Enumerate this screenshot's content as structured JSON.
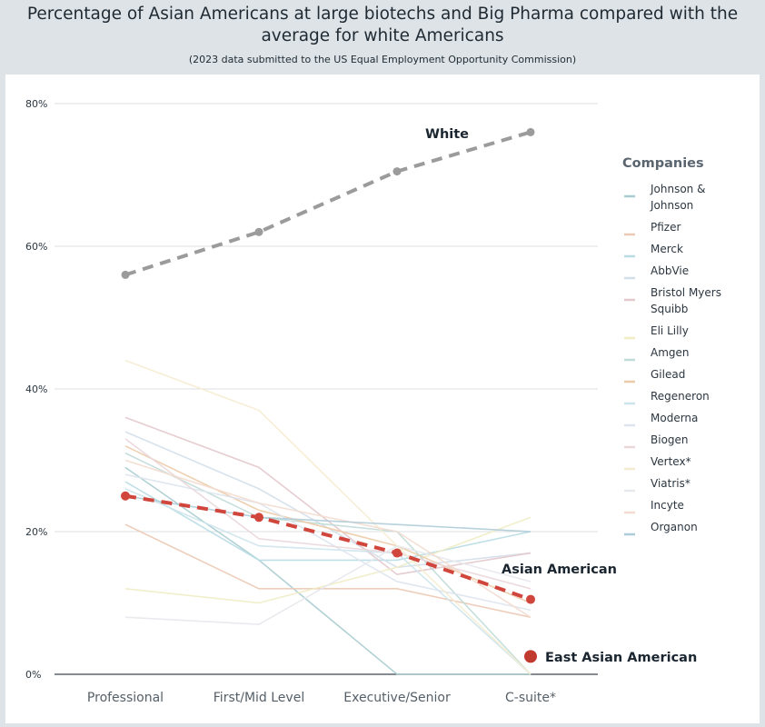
{
  "header": {
    "title": "Percentage of Asian Americans at large biotechs and Big Pharma compared with the average for white Americans",
    "subtitle": "(2023 data submitted to the US Equal Employment Opportunity Commission)"
  },
  "chart_data": {
    "type": "line",
    "title": "Percentage of Asian Americans at large biotechs and Big Pharma compared with the average for white Americans",
    "subtitle": "(2023 data submitted to the US Equal Employment Opportunity Commission)",
    "categories": [
      "Professional",
      "First/Mid Level",
      "Executive/Senior",
      "C-suite*"
    ],
    "ylim": [
      0,
      80
    ],
    "yticks": [
      0,
      20,
      40,
      60,
      80
    ],
    "ytick_labels": [
      "0%",
      "20%",
      "40%",
      "60%",
      "80%"
    ],
    "grid": "horizontal",
    "legend": {
      "title": "Companies",
      "placement": "right",
      "entries": [
        {
          "lines": [
            "Johnson &",
            "Johnson"
          ],
          "color": "#a8ccd0"
        },
        {
          "lines": [
            "Pfizer"
          ],
          "color": "#ecc9b4"
        },
        {
          "lines": [
            "Merck"
          ],
          "color": "#b8dbe4"
        },
        {
          "lines": [
            "AbbVie"
          ],
          "color": "#d3dfea"
        },
        {
          "lines": [
            "Bristol Myers",
            "Squibb"
          ],
          "color": "#e3c8cc"
        },
        {
          "lines": [
            "Eli Lilly"
          ],
          "color": "#f0ecc4"
        },
        {
          "lines": [
            "Amgen"
          ],
          "color": "#c0dcd8"
        },
        {
          "lines": [
            "Gilead"
          ],
          "color": "#eccba8"
        },
        {
          "lines": [
            "Regeneron"
          ],
          "color": "#cde4ec"
        },
        {
          "lines": [
            "Moderna"
          ],
          "color": "#dde4ee"
        },
        {
          "lines": [
            "Biogen"
          ],
          "color": "#ead7da"
        },
        {
          "lines": [
            "Vertex*"
          ],
          "color": "#f5ecd0"
        },
        {
          "lines": [
            "Viatris*"
          ],
          "color": "#e6e8ec"
        },
        {
          "lines": [
            "Incyte"
          ],
          "color": "#f3dccf"
        },
        {
          "lines": [
            "Organon"
          ],
          "color": "#aeccd8"
        }
      ]
    },
    "highlight_series": [
      {
        "label": "White",
        "values": [
          56,
          62,
          70.5,
          76
        ],
        "color": "#9b9b9b"
      },
      {
        "label": "Asian American",
        "values": [
          25,
          22,
          17,
          10.5
        ],
        "color": "#d1463c"
      }
    ],
    "east_asian_american": {
      "label": "East Asian American",
      "value": 2.5,
      "category_index": 3,
      "color": "#c13a30"
    },
    "company_values": [
      [
        29,
        16,
        0,
        0
      ],
      [
        21,
        12,
        12,
        8
      ],
      [
        27,
        16,
        16,
        20
      ],
      [
        34,
        26,
        15,
        17
      ],
      [
        36,
        29,
        14,
        17
      ],
      [
        12,
        10,
        15,
        22
      ],
      [
        31,
        22,
        20,
        0
      ],
      [
        32,
        23,
        18,
        10
      ],
      [
        26,
        18,
        17,
        0
      ],
      [
        28,
        24,
        13,
        9
      ],
      [
        33,
        19,
        17,
        12
      ],
      [
        44,
        37,
        18,
        0
      ],
      [
        8,
        7,
        18,
        13
      ],
      [
        30,
        24,
        20,
        8
      ],
      [
        25,
        22,
        21,
        20
      ]
    ]
  }
}
